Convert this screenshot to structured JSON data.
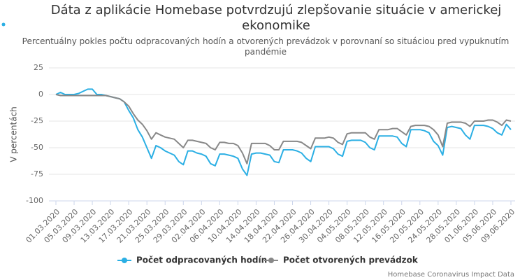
{
  "chart_data": {
    "type": "line",
    "title": "Dáta z aplikácie Homebase potvrdzujú zlepšovanie situácie v americkej ekonomike",
    "subtitle": "Percentuálny pokles počtu odpracovaných hodín a otvorených prevádzok v porovnaní so situáciou pred vypuknutím pandémie",
    "y_label": "V percentách",
    "credits": "Homebase Coronavirus Impact Data",
    "legend": "bottom",
    "grid": true,
    "ylim": [
      -100,
      25
    ],
    "yticks": [
      -100,
      -75,
      -50,
      -25,
      0,
      25
    ],
    "categories": [
      "01.03.2020",
      null,
      null,
      null,
      "05.03.2020",
      null,
      null,
      null,
      "09.03.2020",
      null,
      null,
      null,
      "13.03.2020",
      null,
      null,
      null,
      "17.03.2020",
      null,
      null,
      null,
      "21.03.2020",
      null,
      null,
      null,
      "25.03.2020",
      null,
      null,
      null,
      "29.03.2020",
      null,
      null,
      null,
      "02.04.2020",
      null,
      null,
      null,
      "06.04.2020",
      null,
      null,
      null,
      "10.04.2020",
      null,
      null,
      null,
      "14.04.2020",
      null,
      null,
      null,
      "18.04.2020",
      null,
      null,
      null,
      "22.04.2020",
      null,
      null,
      null,
      "26.04.2020",
      null,
      null,
      null,
      "30.04.2020",
      null,
      null,
      null,
      "04.05.2020",
      null,
      null,
      null,
      "08.05.2020",
      null,
      null,
      null,
      "12.05.2020",
      null,
      null,
      null,
      "16.05.2020",
      null,
      null,
      null,
      "20.05.2020",
      null,
      null,
      null,
      "24.05.2020",
      null,
      null,
      null,
      "28.05.2020",
      null,
      null,
      null,
      "01.06.2020",
      null,
      null,
      null,
      "05.06.2020",
      null,
      null,
      null,
      "09.06.2020"
    ],
    "series": [
      {
        "name": "Počet odpracovaných hodín",
        "color": "#2bafe4",
        "values": [
          0,
          2,
          0,
          0,
          0,
          1,
          3,
          5,
          5,
          0,
          0,
          -1,
          -2,
          -3,
          -4,
          -7,
          -15,
          -22,
          -33,
          -40,
          -50,
          -60,
          -48,
          -50,
          -53,
          -55,
          -57,
          -63,
          -66,
          -53,
          -53,
          -55,
          -56,
          -58,
          -65,
          -67,
          -56,
          -56,
          -57,
          -58,
          -60,
          -70,
          -76,
          -56,
          -55,
          -55,
          -56,
          -57,
          -63,
          -64,
          -52,
          -52,
          -52,
          -53,
          -55,
          -60,
          -63,
          -49,
          -49,
          -49,
          -49,
          -51,
          -56,
          -58,
          -44,
          -43,
          -43,
          -43,
          -45,
          -50,
          -52,
          -39,
          -39,
          -39,
          -39,
          -40,
          -46,
          -49,
          -33,
          -33,
          -33,
          -34,
          -36,
          -44,
          -48,
          -57,
          -31,
          -30,
          -31,
          -32,
          -38,
          -42,
          -29,
          -29,
          -29,
          -30,
          -32,
          -36,
          -38,
          -28,
          -33
        ]
      },
      {
        "name": "Počet otvorených prevádzok",
        "color": "#888888",
        "values": [
          0,
          -1,
          -1,
          -1,
          -1,
          -1,
          -1,
          -1,
          -1,
          -1,
          -1,
          -1,
          -2,
          -3,
          -4,
          -7,
          -11,
          -18,
          -24,
          -28,
          -34,
          -42,
          -36,
          -38,
          -40,
          -41,
          -42,
          -46,
          -50,
          -43,
          -43,
          -44,
          -45,
          -46,
          -50,
          -52,
          -45,
          -45,
          -46,
          -46,
          -48,
          -55,
          -65,
          -46,
          -46,
          -46,
          -46,
          -48,
          -52,
          -52,
          -44,
          -44,
          -44,
          -44,
          -45,
          -48,
          -51,
          -41,
          -41,
          -41,
          -40,
          -41,
          -45,
          -47,
          -37,
          -36,
          -36,
          -36,
          -36,
          -40,
          -42,
          -33,
          -33,
          -33,
          -32,
          -32,
          -35,
          -38,
          -30,
          -29,
          -29,
          -29,
          -30,
          -33,
          -38,
          -49,
          -27,
          -26,
          -26,
          -26,
          -27,
          -30,
          -25,
          -25,
          -25,
          -24,
          -24,
          -26,
          -29,
          -24,
          -25
        ]
      }
    ]
  }
}
